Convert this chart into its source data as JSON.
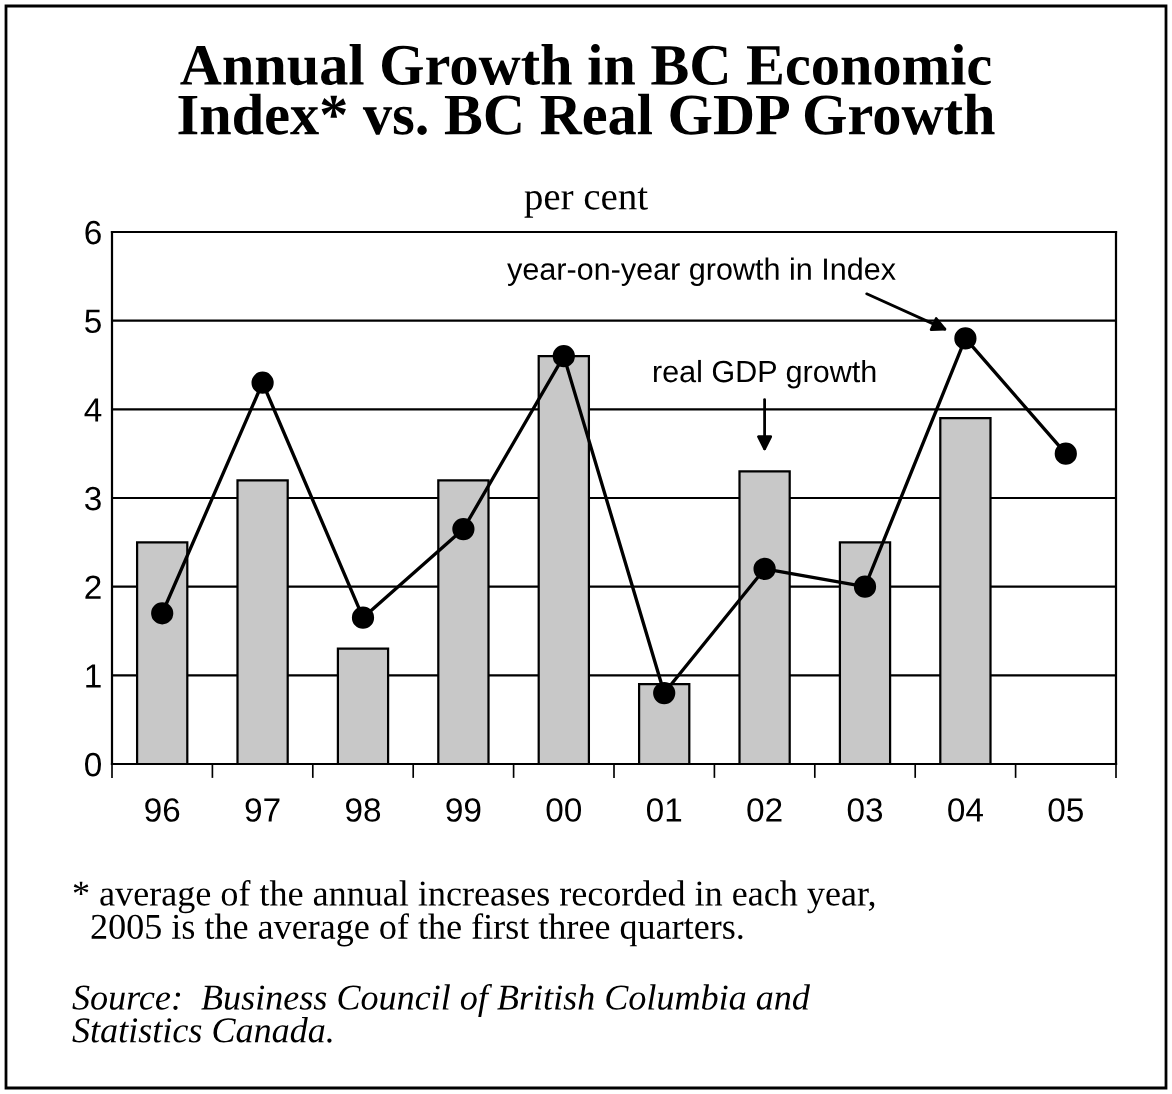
{
  "chart_data": {
    "type": "bar",
    "title": "Annual Growth in BC Economic\nIndex* vs. BC Real GDP Growth",
    "subtitle": "per cent",
    "categories": [
      "96",
      "97",
      "98",
      "99",
      "00",
      "01",
      "02",
      "03",
      "04",
      "05"
    ],
    "series": [
      {
        "type": "bar",
        "color": "#c8c8c8",
        "values": [
          2.5,
          3.2,
          1.3,
          3.2,
          4.6,
          0.9,
          3.3,
          2.5,
          3.9,
          null
        ]
      },
      {
        "type": "line",
        "color": "#000000",
        "marker": "circle",
        "values": [
          1.7,
          4.3,
          1.65,
          2.65,
          4.6,
          0.8,
          2.2,
          2.0,
          4.8,
          3.5
        ]
      }
    ],
    "ylim": [
      0,
      6
    ],
    "yticks": [
      0,
      1,
      2,
      3,
      4,
      5,
      6
    ],
    "grid": "y",
    "annotations": [
      {
        "text": "year-on-year growth in Index",
        "x": "04",
        "y": 4.8
      },
      {
        "text": "real GDP growth",
        "x": "02",
        "y": 3.3
      },
      "* average of the annual increases recorded in each year,\n  2005 is the average of the first three quarters.",
      "Source:  Business Council of British Columbia and\nStatistics Canada."
    ]
  }
}
